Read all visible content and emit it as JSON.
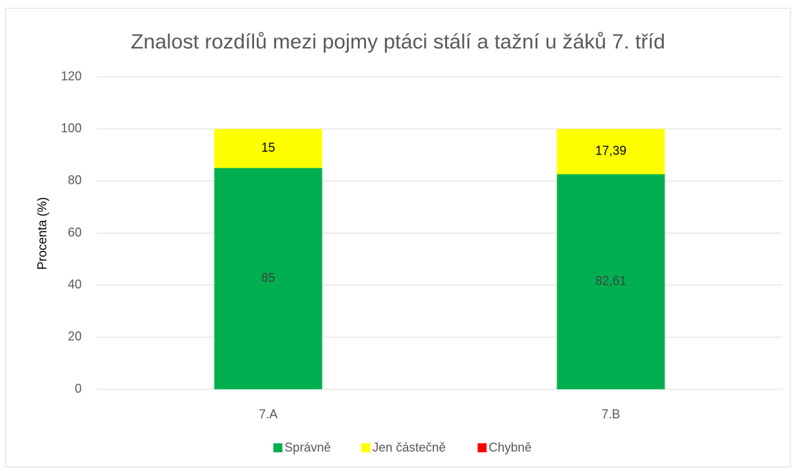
{
  "chart_data": {
    "type": "bar",
    "stacked": true,
    "title": "Znalost rozdílů mezi pojmy ptáci stálí a tažní u žáků 7. tříd",
    "ylabel": "Procenta (%)",
    "categories": [
      "7.A",
      "7.B"
    ],
    "series": [
      {
        "name": "Správně",
        "color": "#00b050",
        "values": [
          85,
          82.61
        ],
        "value_labels": [
          "85",
          "82,61"
        ],
        "label_color": "#404040"
      },
      {
        "name": "Jen částečně",
        "color": "#ffff00",
        "values": [
          15,
          17.39
        ],
        "value_labels": [
          "15",
          "17,39"
        ],
        "label_color": "#000000"
      },
      {
        "name": "Chybně",
        "color": "#ff0000",
        "values": [
          0,
          0
        ]
      }
    ],
    "ylim": [
      0,
      120
    ],
    "yticks": [
      0,
      20,
      40,
      60,
      80,
      100,
      120
    ],
    "grid": true,
    "legend": "bottom"
  }
}
